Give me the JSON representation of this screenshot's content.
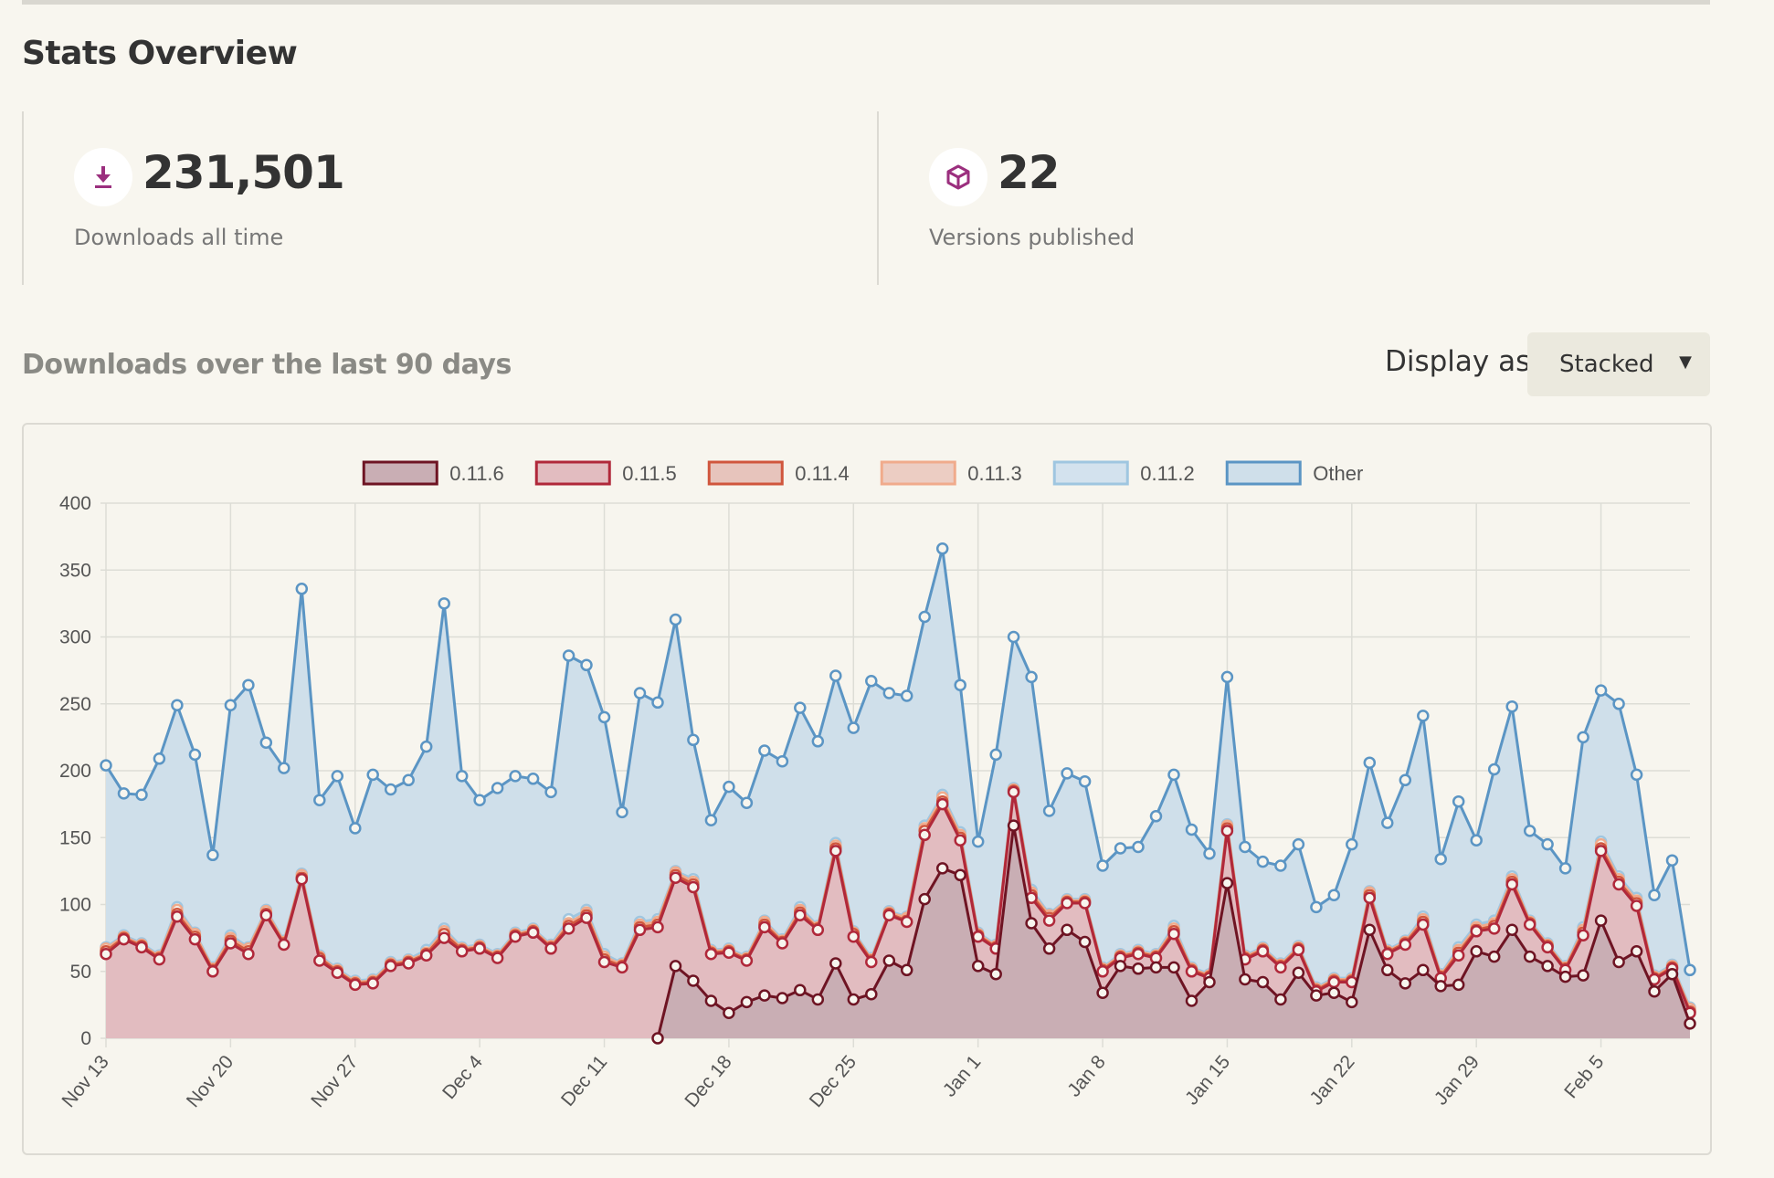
{
  "page": {
    "title": "Stats Overview"
  },
  "stats": {
    "downloads": {
      "value": "231,501",
      "label": "Downloads all time",
      "icon": "download-icon"
    },
    "versions": {
      "value": "22",
      "label": "Versions published",
      "icon": "package-icon"
    }
  },
  "colors": {
    "icon_accent": "#9b2f7e"
  },
  "chart_section": {
    "heading": "Downloads over the last 90 days",
    "display_label": "Display as",
    "display_value": "Stacked"
  },
  "chart_data": {
    "type": "area",
    "stacked": true,
    "title": "",
    "xlabel": "",
    "ylabel": "",
    "ylim": [
      0,
      400
    ],
    "yticks": [
      0,
      50,
      100,
      150,
      200,
      250,
      300,
      350,
      400
    ],
    "x_start": "Nov 13",
    "x_ticks": [
      "Nov 13",
      "Nov 20",
      "Nov 27",
      "Dec 4",
      "Dec 11",
      "Dec 18",
      "Dec 25",
      "Jan 1",
      "Jan 8",
      "Jan 15",
      "Jan 22",
      "Jan 29",
      "Feb 5"
    ],
    "grid": true,
    "legend_position": "top",
    "series_cumulative_top": [
      {
        "name": "0.11.6",
        "stroke": "#6e1423",
        "fill": "#c9aeb4",
        "start_day": 31,
        "values": [
          0,
          54,
          43,
          28,
          19,
          27,
          32,
          30,
          36,
          29,
          56,
          29,
          33,
          58,
          51,
          104,
          127,
          122,
          54,
          48,
          159,
          86,
          67,
          81,
          72,
          34,
          54,
          52,
          53,
          53,
          28,
          42,
          116,
          44,
          42,
          29,
          49,
          32,
          34,
          27,
          81,
          51,
          41,
          51,
          39,
          40,
          65,
          61,
          81,
          61,
          54,
          46,
          47,
          88,
          57,
          65,
          35,
          48,
          11
        ]
      },
      {
        "name": "0.11.5",
        "stroke": "#b0283a",
        "fill": "#e2bcc0",
        "start_day": 0,
        "values": [
          63,
          74,
          68,
          59,
          91,
          74,
          50,
          71,
          63,
          92,
          70,
          119,
          58,
          49,
          40,
          41,
          54,
          56,
          62,
          75,
          65,
          67,
          60,
          76,
          79,
          67,
          82,
          90,
          57,
          53,
          81,
          83,
          120,
          113,
          63,
          64,
          58,
          83,
          71,
          92,
          81,
          140,
          76,
          57,
          92,
          87,
          152,
          175,
          148,
          76,
          67,
          184,
          105,
          88,
          101,
          101,
          50,
          60,
          63,
          60,
          78,
          50,
          45,
          155,
          59,
          65,
          53,
          66,
          35,
          42,
          42,
          105,
          63,
          70,
          85,
          45,
          62,
          80,
          82,
          115,
          85,
          68,
          51,
          77,
          140,
          115,
          99,
          44,
          52,
          19
        ]
      },
      {
        "name": "0.11.4",
        "stroke": "#d0563d",
        "fill": "#e7c4bc",
        "start_day": 0,
        "values": [
          65,
          75,
          69,
          60,
          93,
          76,
          51,
          73,
          65,
          93,
          71,
          120,
          60,
          50,
          41,
          42,
          55,
          57,
          63,
          78,
          66,
          68,
          61,
          77,
          80,
          68,
          84,
          92,
          59,
          54,
          83,
          85,
          122,
          115,
          64,
          65,
          59,
          85,
          72,
          94,
          82,
          142,
          78,
          58,
          93,
          88,
          155,
          177,
          150,
          77,
          68,
          185,
          107,
          90,
          102,
          102,
          51,
          61,
          64,
          61,
          80,
          51,
          46,
          157,
          60,
          66,
          54,
          67,
          36,
          43,
          43,
          107,
          64,
          71,
          87,
          46,
          64,
          81,
          84,
          117,
          86,
          69,
          52,
          79,
          142,
          117,
          101,
          45,
          53,
          20
        ]
      },
      {
        "name": "0.11.3",
        "stroke": "#f0ab8c",
        "fill": "#eccdc3",
        "start_day": 0,
        "values": [
          67,
          76,
          70,
          61,
          96,
          78,
          52,
          75,
          67,
          95,
          72,
          122,
          61,
          51,
          42,
          43,
          56,
          58,
          64,
          80,
          67,
          69,
          62,
          78,
          81,
          69,
          86,
          94,
          61,
          55,
          85,
          87,
          124,
          117,
          65,
          66,
          60,
          87,
          73,
          96,
          83,
          144,
          79,
          59,
          94,
          90,
          157,
          180,
          152,
          78,
          69,
          186,
          109,
          92,
          103,
          103,
          52,
          62,
          65,
          62,
          82,
          52,
          47,
          159,
          61,
          67,
          55,
          68,
          37,
          44,
          44,
          109,
          65,
          72,
          89,
          47,
          66,
          83,
          86,
          119,
          87,
          70,
          53,
          81,
          145,
          119,
          103,
          46,
          54,
          22
        ]
      },
      {
        "name": "0.11.2",
        "stroke": "#9fc6e0",
        "fill": "#d3e2ee",
        "start_day": 0,
        "values": [
          68,
          77,
          71,
          62,
          98,
          79,
          53,
          77,
          68,
          96,
          73,
          123,
          62,
          52,
          43,
          44,
          57,
          59,
          66,
          82,
          68,
          70,
          63,
          79,
          82,
          70,
          89,
          96,
          63,
          56,
          87,
          89,
          125,
          119,
          66,
          67,
          61,
          88,
          74,
          98,
          84,
          146,
          80,
          60,
          95,
          91,
          159,
          182,
          154,
          79,
          70,
          187,
          111,
          93,
          104,
          104,
          53,
          63,
          66,
          63,
          84,
          53,
          48,
          160,
          62,
          68,
          56,
          69,
          38,
          45,
          45,
          110,
          66,
          73,
          91,
          48,
          68,
          85,
          88,
          121,
          88,
          71,
          54,
          83,
          147,
          121,
          105,
          47,
          55,
          23
        ]
      },
      {
        "name": "Other",
        "stroke": "#5b95c4",
        "fill": "#cfdfea",
        "start_day": 0,
        "values": [
          204,
          183,
          182,
          209,
          249,
          212,
          137,
          249,
          264,
          221,
          202,
          336,
          178,
          196,
          157,
          197,
          186,
          193,
          218,
          325,
          196,
          178,
          187,
          196,
          194,
          184,
          286,
          279,
          240,
          169,
          258,
          251,
          313,
          223,
          163,
          188,
          176,
          215,
          207,
          247,
          222,
          271,
          232,
          267,
          258,
          256,
          315,
          366,
          264,
          147,
          212,
          300,
          270,
          170,
          198,
          192,
          129,
          142,
          143,
          166,
          197,
          156,
          138,
          270,
          143,
          132,
          129,
          145,
          98,
          107,
          145,
          206,
          161,
          193,
          241,
          134,
          177,
          148,
          201,
          248,
          155,
          145,
          127,
          225,
          260,
          250,
          197,
          107,
          133,
          51
        ]
      }
    ]
  }
}
